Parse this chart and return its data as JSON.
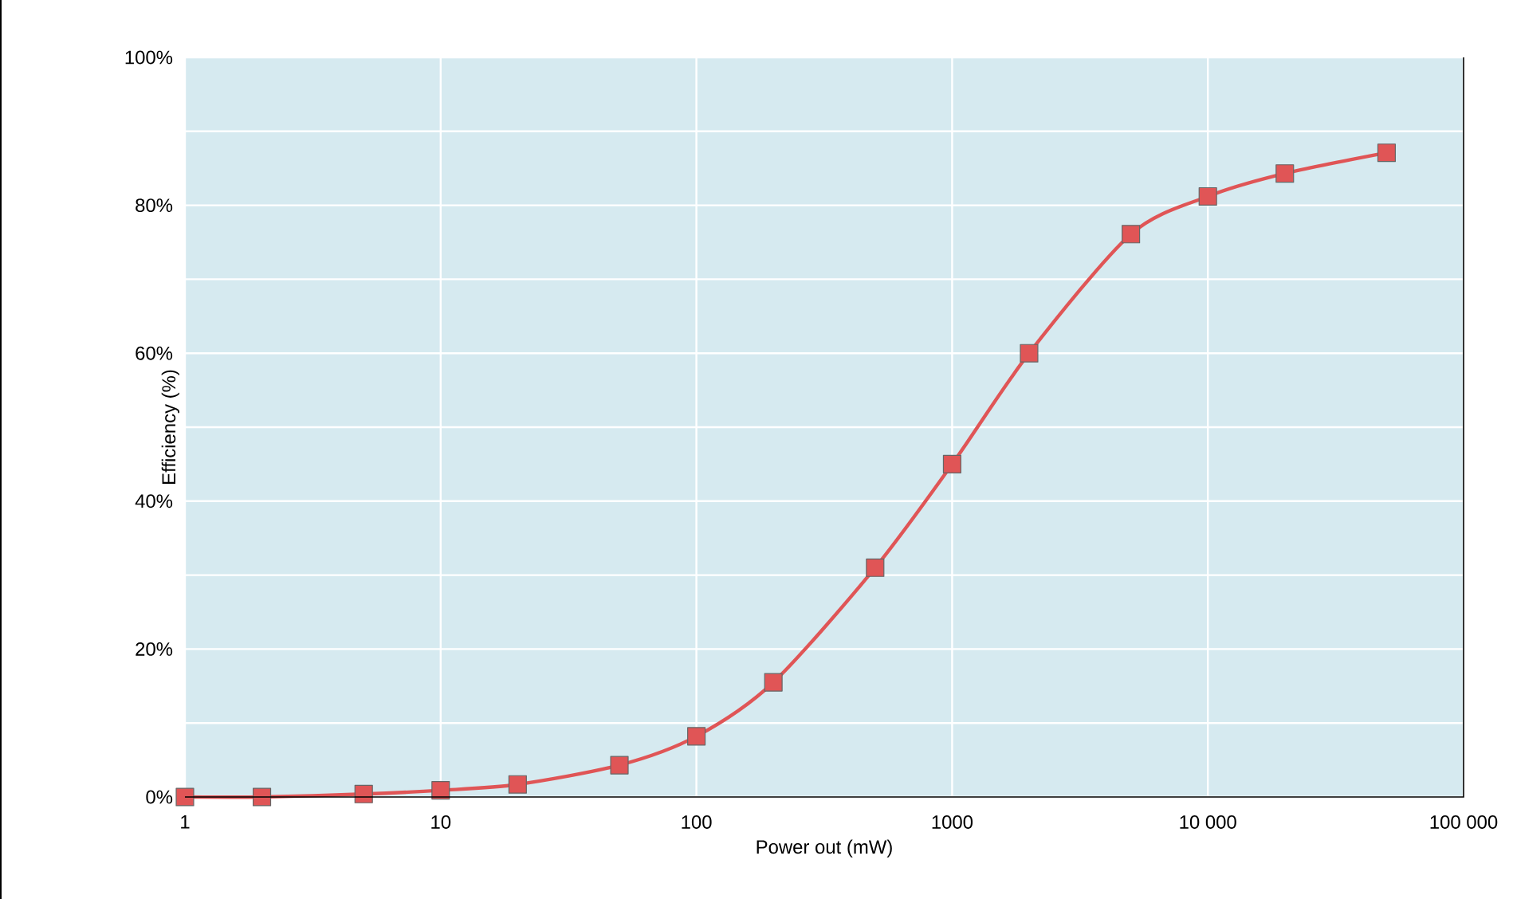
{
  "chart_data": {
    "type": "line",
    "xlabel": "Power out (mW)",
    "ylabel": "Efficiency (%)",
    "log": "x",
    "grid": true,
    "marker": "square",
    "line_style": "solid",
    "xlim": [
      1,
      100000
    ],
    "ylim": [
      0,
      100
    ],
    "xticks": [
      1,
      10,
      100,
      1000,
      {
        "value": 10000,
        "label": "10 000"
      },
      {
        "value": 100000,
        "label": "100 000"
      }
    ],
    "yticks": [
      {
        "value": 0,
        "label": "0%"
      },
      {
        "value": 10,
        "label": null
      },
      {
        "value": 20,
        "label": "20%"
      },
      {
        "value": 30,
        "label": null
      },
      {
        "value": 40,
        "label": "40%"
      },
      {
        "value": 50,
        "label": null
      },
      {
        "value": 60,
        "label": "60%"
      },
      {
        "value": 70,
        "label": null
      },
      {
        "value": 80,
        "label": "80%"
      },
      {
        "value": 90,
        "label": null
      },
      {
        "value": 100,
        "label": "100%"
      }
    ],
    "x": [
      1,
      2,
      5,
      10,
      20,
      50,
      100,
      200,
      500,
      1000,
      2000,
      5000,
      10000,
      20000,
      50000
    ],
    "series": [
      {
        "color": "#e05556",
        "values": [
          0,
          0,
          0.4,
          0.9,
          1.7,
          4.3,
          8.2,
          15.5,
          31,
          45,
          60,
          76.1,
          81.2,
          84.3,
          87.1
        ]
      }
    ]
  }
}
